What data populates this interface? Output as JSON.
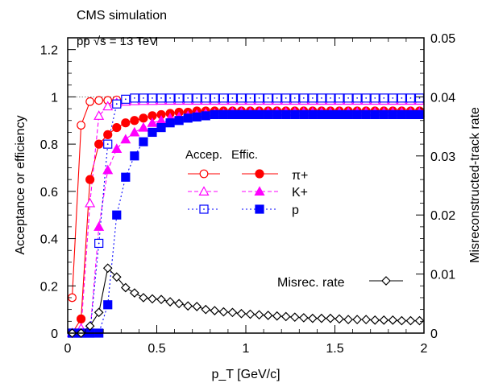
{
  "chart_data": {
    "type": "scatter",
    "title": "CMS simulation",
    "annotation": "pp √s = 13 TeV",
    "xlabel": "p_T [GeV/c]",
    "ylabel": "Acceptance or efficiency",
    "y2label": "Misreconstructed-track rate",
    "xlim": [
      0,
      2
    ],
    "ylim": [
      0,
      1.25
    ],
    "y2lim": [
      0,
      0.05
    ],
    "xticks": [
      "0",
      "0.5",
      "1",
      "1.5",
      "2"
    ],
    "yticks": [
      "0",
      "0.2",
      "0.4",
      "0.6",
      "0.8",
      "1",
      "1.2"
    ],
    "y2ticks": [
      "0",
      "0.01",
      "0.02",
      "0.03",
      "0.04",
      "0.05"
    ],
    "legend": {
      "header_accep": "Accep.",
      "header_effic": "Effic.",
      "labels": [
        "π+",
        "K+",
        "p"
      ],
      "misrec_label": "Misrec. rate"
    },
    "colors": {
      "pion": "#ff0000",
      "kaon": "#ff00ff",
      "proton": "#0000ff",
      "misrec": "#000000"
    },
    "series": [
      {
        "name": "π+",
        "kind": "acceptance",
        "color": "#ff0000",
        "x": [
          0.025,
          0.075,
          0.125,
          0.175,
          0.225,
          0.275,
          0.325,
          0.375,
          0.425,
          0.475,
          0.525,
          0.575,
          0.625,
          0.675,
          0.725,
          0.775,
          0.825,
          0.875,
          0.925,
          0.975,
          1.025,
          1.075,
          1.125,
          1.175,
          1.225,
          1.275,
          1.325,
          1.375,
          1.425,
          1.475,
          1.525,
          1.575,
          1.625,
          1.675,
          1.725,
          1.775,
          1.825,
          1.875,
          1.925,
          1.975
        ],
        "y": [
          0.15,
          0.88,
          0.98,
          0.985,
          0.985,
          0.987,
          0.987,
          0.988,
          0.988,
          0.988,
          0.988,
          0.988,
          0.988,
          0.988,
          0.988,
          0.988,
          0.988,
          0.988,
          0.988,
          0.988,
          0.988,
          0.988,
          0.988,
          0.988,
          0.988,
          0.988,
          0.988,
          0.988,
          0.988,
          0.988,
          0.988,
          0.988,
          0.988,
          0.988,
          0.988,
          0.988,
          0.988,
          0.988,
          0.988,
          0.988
        ]
      },
      {
        "name": "π+",
        "kind": "efficiency",
        "color": "#ff0000",
        "x": [
          0.025,
          0.075,
          0.125,
          0.175,
          0.225,
          0.275,
          0.325,
          0.375,
          0.425,
          0.475,
          0.525,
          0.575,
          0.625,
          0.675,
          0.725,
          0.775,
          0.825,
          0.875,
          0.925,
          0.975,
          1.025,
          1.075,
          1.125,
          1.175,
          1.225,
          1.275,
          1.325,
          1.375,
          1.425,
          1.475,
          1.525,
          1.575,
          1.625,
          1.675,
          1.725,
          1.775,
          1.825,
          1.875,
          1.925,
          1.975
        ],
        "y": [
          0.0,
          0.06,
          0.65,
          0.8,
          0.84,
          0.87,
          0.89,
          0.9,
          0.91,
          0.92,
          0.925,
          0.93,
          0.935,
          0.935,
          0.94,
          0.94,
          0.94,
          0.94,
          0.94,
          0.94,
          0.94,
          0.94,
          0.94,
          0.94,
          0.94,
          0.94,
          0.94,
          0.94,
          0.94,
          0.94,
          0.94,
          0.94,
          0.94,
          0.94,
          0.94,
          0.94,
          0.94,
          0.94,
          0.94,
          0.94
        ]
      },
      {
        "name": "K+",
        "kind": "acceptance",
        "color": "#ff00ff",
        "x": [
          0.025,
          0.075,
          0.125,
          0.175,
          0.225,
          0.275,
          0.325,
          0.375,
          0.425,
          0.475,
          0.525,
          0.575,
          0.625,
          0.675,
          0.725,
          0.775,
          0.825,
          0.875,
          0.925,
          0.975,
          1.025,
          1.075,
          1.125,
          1.175,
          1.225,
          1.275,
          1.325,
          1.375,
          1.425,
          1.475,
          1.525,
          1.575,
          1.625,
          1.675,
          1.725,
          1.775,
          1.825,
          1.875,
          1.925,
          1.975
        ],
        "y": [
          0.0,
          0.02,
          0.55,
          0.92,
          0.96,
          0.975,
          0.98,
          0.982,
          0.983,
          0.983,
          0.984,
          0.984,
          0.984,
          0.984,
          0.984,
          0.984,
          0.984,
          0.984,
          0.984,
          0.984,
          0.984,
          0.984,
          0.984,
          0.984,
          0.984,
          0.984,
          0.984,
          0.984,
          0.984,
          0.984,
          0.984,
          0.984,
          0.984,
          0.984,
          0.984,
          0.984,
          0.984,
          0.984,
          0.984,
          0.984
        ]
      },
      {
        "name": "K+",
        "kind": "efficiency",
        "color": "#ff00ff",
        "x": [
          0.025,
          0.075,
          0.125,
          0.175,
          0.225,
          0.275,
          0.325,
          0.375,
          0.425,
          0.475,
          0.525,
          0.575,
          0.625,
          0.675,
          0.725,
          0.775,
          0.825,
          0.875,
          0.925,
          0.975,
          1.025,
          1.075,
          1.125,
          1.175,
          1.225,
          1.275,
          1.325,
          1.375,
          1.425,
          1.475,
          1.525,
          1.575,
          1.625,
          1.675,
          1.725,
          1.775,
          1.825,
          1.875,
          1.925,
          1.975
        ],
        "y": [
          0.0,
          0.0,
          0.0,
          0.45,
          0.69,
          0.78,
          0.82,
          0.85,
          0.87,
          0.89,
          0.9,
          0.91,
          0.915,
          0.92,
          0.925,
          0.93,
          0.93,
          0.93,
          0.935,
          0.935,
          0.935,
          0.935,
          0.935,
          0.935,
          0.935,
          0.935,
          0.935,
          0.935,
          0.935,
          0.935,
          0.935,
          0.935,
          0.935,
          0.935,
          0.935,
          0.935,
          0.935,
          0.935,
          0.935,
          0.935
        ]
      },
      {
        "name": "p",
        "kind": "acceptance",
        "color": "#0000ff",
        "x": [
          0.025,
          0.075,
          0.125,
          0.175,
          0.225,
          0.275,
          0.325,
          0.375,
          0.425,
          0.475,
          0.525,
          0.575,
          0.625,
          0.675,
          0.725,
          0.775,
          0.825,
          0.875,
          0.925,
          0.975,
          1.025,
          1.075,
          1.125,
          1.175,
          1.225,
          1.275,
          1.325,
          1.375,
          1.425,
          1.475,
          1.525,
          1.575,
          1.625,
          1.675,
          1.725,
          1.775,
          1.825,
          1.875,
          1.925,
          1.975
        ],
        "y": [
          0.0,
          0.0,
          0.0,
          0.38,
          0.8,
          0.97,
          0.99,
          0.995,
          0.995,
          0.995,
          0.995,
          0.995,
          0.995,
          0.995,
          0.995,
          0.995,
          0.995,
          0.995,
          0.995,
          0.995,
          0.995,
          0.995,
          0.995,
          0.995,
          0.995,
          0.995,
          0.995,
          0.995,
          0.995,
          0.995,
          0.995,
          0.995,
          0.995,
          0.995,
          0.995,
          0.995,
          0.995,
          0.995,
          0.995,
          0.995
        ]
      },
      {
        "name": "p",
        "kind": "efficiency",
        "color": "#0000ff",
        "x": [
          0.025,
          0.075,
          0.125,
          0.175,
          0.225,
          0.275,
          0.325,
          0.375,
          0.425,
          0.475,
          0.525,
          0.575,
          0.625,
          0.675,
          0.725,
          0.775,
          0.825,
          0.875,
          0.925,
          0.975,
          1.025,
          1.075,
          1.125,
          1.175,
          1.225,
          1.275,
          1.325,
          1.375,
          1.425,
          1.475,
          1.525,
          1.575,
          1.625,
          1.675,
          1.725,
          1.775,
          1.825,
          1.875,
          1.925,
          1.975
        ],
        "y": [
          0.0,
          0.0,
          0.0,
          0.0,
          0.12,
          0.5,
          0.66,
          0.75,
          0.81,
          0.85,
          0.87,
          0.89,
          0.9,
          0.91,
          0.915,
          0.92,
          0.925,
          0.925,
          0.925,
          0.925,
          0.925,
          0.925,
          0.925,
          0.925,
          0.925,
          0.925,
          0.925,
          0.925,
          0.925,
          0.925,
          0.925,
          0.925,
          0.925,
          0.925,
          0.925,
          0.925,
          0.925,
          0.925,
          0.925,
          0.925
        ]
      },
      {
        "name": "Misrec. rate",
        "kind": "misrec",
        "axis": "y2",
        "color": "#000000",
        "x": [
          0.025,
          0.075,
          0.125,
          0.175,
          0.225,
          0.275,
          0.325,
          0.375,
          0.425,
          0.475,
          0.525,
          0.575,
          0.625,
          0.675,
          0.725,
          0.775,
          0.825,
          0.875,
          0.925,
          0.975,
          1.025,
          1.075,
          1.125,
          1.175,
          1.225,
          1.275,
          1.325,
          1.375,
          1.425,
          1.475,
          1.525,
          1.575,
          1.625,
          1.675,
          1.725,
          1.775,
          1.825,
          1.875,
          1.925,
          1.975
        ],
        "y": [
          0.0,
          0.0,
          0.0012,
          0.0035,
          0.011,
          0.0095,
          0.0077,
          0.0068,
          0.006,
          0.0058,
          0.0057,
          0.0053,
          0.005,
          0.0046,
          0.0045,
          0.004,
          0.0038,
          0.0036,
          0.0035,
          0.0033,
          0.0032,
          0.0031,
          0.003,
          0.0029,
          0.0028,
          0.0027,
          0.0026,
          0.0025,
          0.0025,
          0.0025,
          0.0024,
          0.0023,
          0.0023,
          0.0023,
          0.0022,
          0.0022,
          0.0022,
          0.0021,
          0.0021,
          0.0021
        ]
      }
    ]
  }
}
